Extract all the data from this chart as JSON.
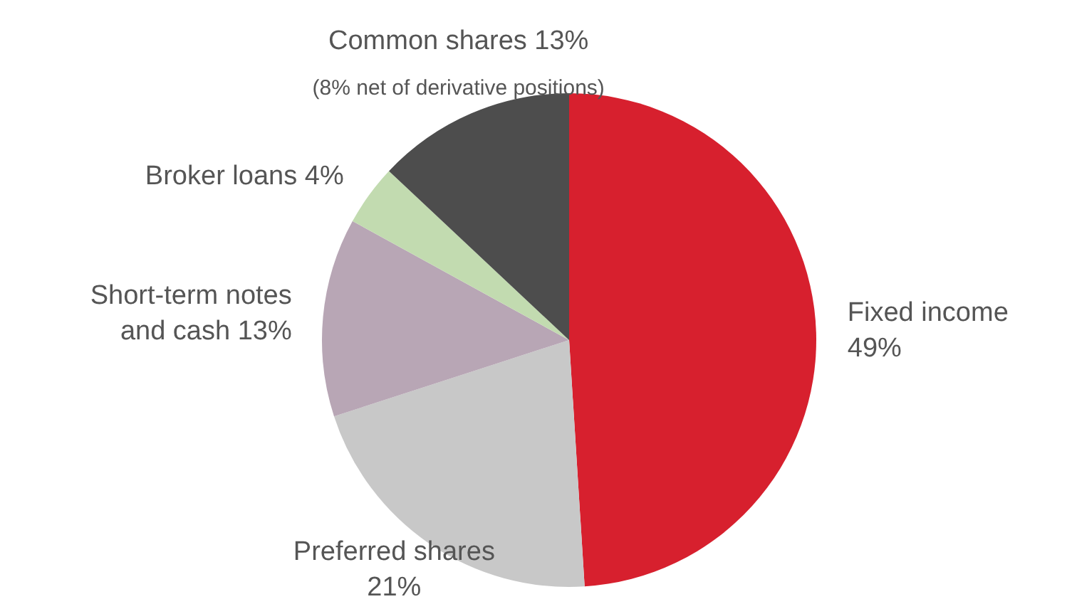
{
  "chart_data": {
    "type": "pie",
    "categories": [
      "Fixed income",
      "Preferred shares",
      "Short-term notes and cash",
      "Broker loans",
      "Common shares"
    ],
    "values": [
      49,
      21,
      13,
      4,
      13
    ],
    "colors": [
      "#d7202e",
      "#c8c8c8",
      "#b8a6b5",
      "#c2dbb0",
      "#4d4d4d"
    ],
    "value_labels": [
      "49%",
      "21%",
      "13%",
      "4%",
      "13%"
    ],
    "annotations": [
      "(8% net of derivative positions)"
    ],
    "legend": false
  }
}
